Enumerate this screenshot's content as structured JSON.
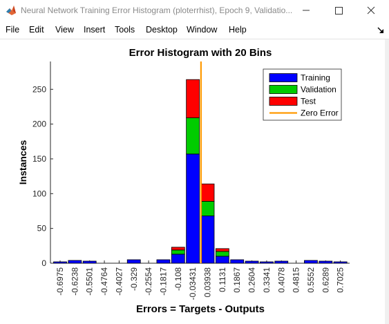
{
  "window": {
    "title": "Neural Network Training Error Histogram (ploterrhist), Epoch 9, Validatio..."
  },
  "menu": [
    "File",
    "Edit",
    "View",
    "Insert",
    "Tools",
    "Desktop",
    "Window",
    "Help"
  ],
  "icons": {
    "app": "matlab-logo-icon",
    "minimize": "minimize-icon",
    "maximize": "maximize-icon",
    "close": "close-icon",
    "dock": "dock-arrow-icon"
  },
  "chart_data": {
    "type": "bar",
    "stacked": true,
    "title": "Error Histogram with 20 Bins",
    "xlabel": "Errors = Targets - Outputs",
    "ylabel": "Instances",
    "ylim": [
      0,
      290
    ],
    "yticks": [
      0,
      50,
      100,
      150,
      200,
      250
    ],
    "categories": [
      "-0.6975",
      "-0.6238",
      "-0.5501",
      "-0.4764",
      "-0.4027",
      "-0.329",
      "-0.2554",
      "-0.1817",
      "-0.108",
      "-0.03431",
      "0.03938",
      "0.1131",
      "0.1867",
      "0.2604",
      "0.3341",
      "0.4078",
      "0.4815",
      "0.5552",
      "0.6289",
      "0.7025"
    ],
    "series": [
      {
        "name": "Training",
        "color": "#0000ff",
        "values": [
          2,
          4,
          3,
          0,
          0,
          5,
          0,
          5,
          13,
          157,
          68,
          10,
          5,
          3,
          2,
          3,
          0,
          4,
          3,
          2
        ]
      },
      {
        "name": "Validation",
        "color": "#00cc00",
        "values": [
          0,
          0,
          0,
          0,
          0,
          0,
          0,
          0,
          6,
          52,
          21,
          7,
          0,
          0,
          0,
          0,
          0,
          0,
          0,
          0
        ]
      },
      {
        "name": "Test",
        "color": "#ff0000",
        "values": [
          0,
          0,
          0,
          0,
          0,
          0,
          0,
          0,
          4,
          55,
          25,
          4,
          0,
          0,
          0,
          0,
          0,
          0,
          0,
          0
        ]
      }
    ],
    "zero_error": {
      "name": "Zero Error",
      "color": "#ff9900",
      "category_index": 10,
      "offset": -0.45
    },
    "legend_position": "top-right",
    "grid": false
  }
}
